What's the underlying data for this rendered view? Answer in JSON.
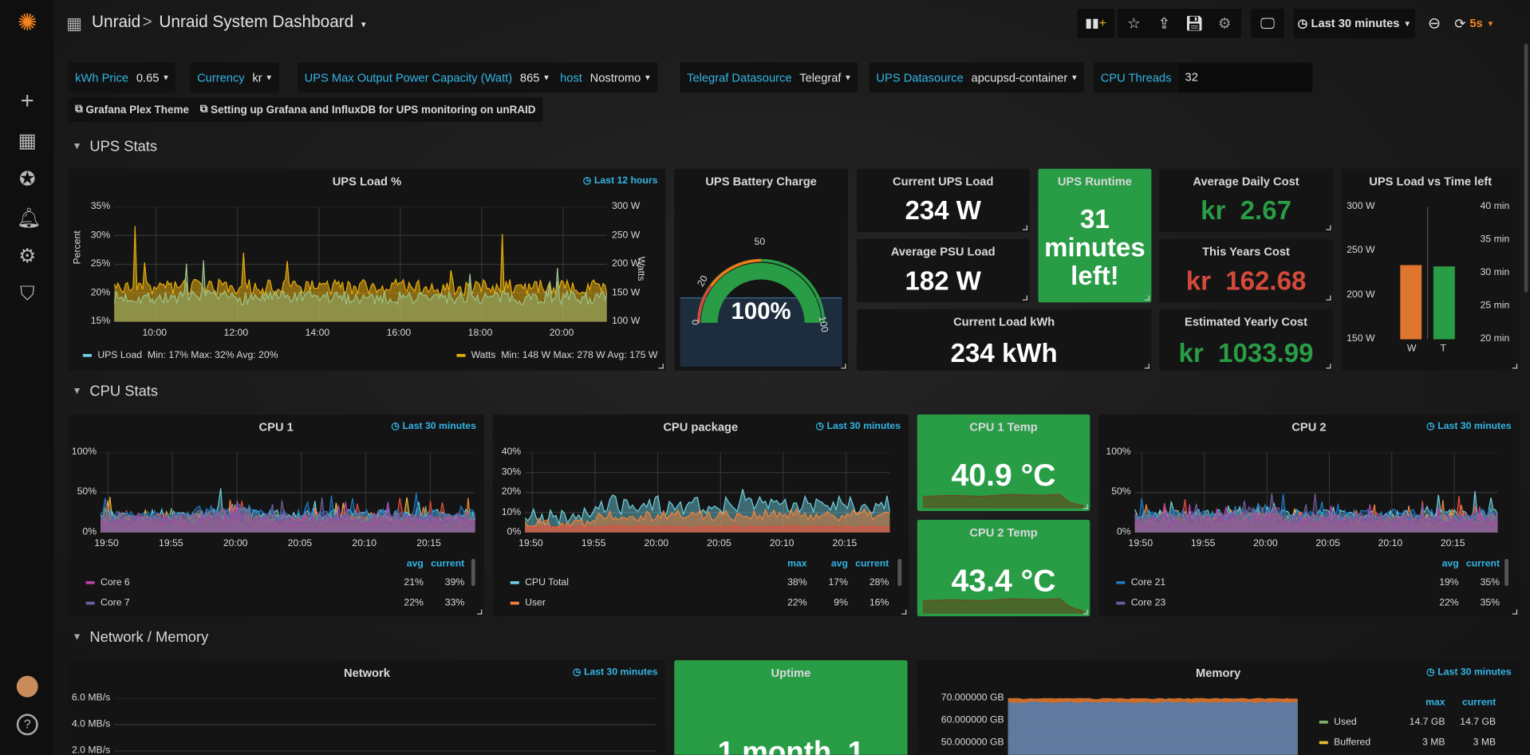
{
  "nav": {
    "org": "Unraid",
    "separator": ">",
    "dashboard_title": "Unraid System Dashboard"
  },
  "toolbar": {
    "time_range": "Last 30 minutes",
    "refresh_interval": "5s"
  },
  "variables": [
    {
      "label": "kWh Price",
      "value": "0.65"
    },
    {
      "label": "Currency",
      "value": "kr"
    },
    {
      "label": "UPS Max Output Power Capacity (Watt)",
      "value": "865"
    },
    {
      "label": "host",
      "value": "Nostromo"
    },
    {
      "label": "Telegraf Datasource",
      "value": "Telegraf"
    },
    {
      "label": "UPS Datasource",
      "value": "apcupsd-container"
    },
    {
      "label": "CPU Threads",
      "value": "32"
    }
  ],
  "links": [
    "Grafana Plex Theme",
    "Setting up Grafana and InfluxDB for UPS monitoring on unRAID"
  ],
  "rows": [
    "UPS Stats",
    "CPU Stats",
    "Network / Memory"
  ],
  "colors": {
    "accent": "#33b5e5",
    "green": "#299c46",
    "red": "#d44a3a",
    "orange": "#eb7b18",
    "refresh": "#f5821f"
  },
  "ups": {
    "load_panel": {
      "title": "UPS Load %",
      "badge": "Last 12 hours",
      "y_label": "Percent",
      "y2_label": "Watts",
      "y_ticks": [
        "35%",
        "30%",
        "25%",
        "20%",
        "15%"
      ],
      "y2_ticks": [
        "300 W",
        "250 W",
        "200 W",
        "150 W",
        "100 W"
      ],
      "x_ticks": [
        "10:00",
        "12:00",
        "14:00",
        "16:00",
        "18:00",
        "20:00"
      ],
      "legend": [
        {
          "name": "UPS Load",
          "stats": "Min: 17%  Max: 32%  Avg: 20%",
          "color": "#6ed0e0"
        },
        {
          "name": "Watts",
          "stats": "Min: 148 W  Max: 278 W  Avg: 175 W",
          "color": "#e5ac0e"
        }
      ]
    },
    "battery": {
      "title": "UPS Battery Charge",
      "value": "100%",
      "percent": 100,
      "thresholds": [
        "0",
        "20",
        "50",
        "100"
      ]
    },
    "current_load": {
      "title": "Current UPS Load",
      "value": "234 W"
    },
    "avg_psu": {
      "title": "Average PSU Load",
      "value": "182 W"
    },
    "runtime": {
      "title": "UPS Runtime",
      "value_lines": [
        "31",
        "minutes",
        "left!"
      ]
    },
    "load_kwh": {
      "title": "Current Load kWh",
      "value": "234 kWh"
    },
    "daily_cost": {
      "title": "Average Daily Cost",
      "unit": "kr",
      "value": "2.67"
    },
    "year_cost": {
      "title": "This Years Cost",
      "unit": "kr",
      "value": "162.68"
    },
    "yearly_cost": {
      "title": "Estimated Yearly Cost",
      "unit": "kr",
      "value": "1033.99"
    },
    "load_vs_time": {
      "title": "UPS Load vs Time left",
      "y_ticks": [
        "300 W",
        "250 W",
        "200 W",
        "150 W"
      ],
      "y2_ticks": [
        "40 min",
        "35 min",
        "30 min",
        "25 min",
        "20 min"
      ],
      "chart_data": {
        "type": "bar",
        "categories": [
          "W",
          "T"
        ],
        "values": [
          234,
          31
        ],
        "units": [
          "W",
          "min"
        ],
        "ylim": [
          150,
          300
        ],
        "y2lim": [
          20,
          40
        ],
        "colors": [
          "#e0752d",
          "#299c46"
        ]
      }
    }
  },
  "cpu": {
    "cpu1": {
      "title": "CPU 1",
      "badge": "Last 30 minutes",
      "y_ticks": [
        "100%",
        "50%",
        "0%"
      ],
      "x_ticks": [
        "19:50",
        "19:55",
        "20:00",
        "20:05",
        "20:10",
        "20:15"
      ],
      "legend_headers": [
        "avg",
        "current"
      ],
      "legend": [
        {
          "name": "Core 6",
          "values": [
            "21%",
            "39%"
          ],
          "color": "#ba43a9"
        },
        {
          "name": "Core 7",
          "values": [
            "22%",
            "33%"
          ],
          "color": "#705da0"
        }
      ]
    },
    "package": {
      "title": "CPU package",
      "badge": "Last 30 minutes",
      "y_ticks": [
        "40%",
        "30%",
        "20%",
        "10%",
        "0%"
      ],
      "x_ticks": [
        "19:50",
        "19:55",
        "20:00",
        "20:05",
        "20:10",
        "20:15"
      ],
      "legend_headers": [
        "max",
        "avg",
        "current"
      ],
      "legend": [
        {
          "name": "CPU Total",
          "values": [
            "38%",
            "17%",
            "28%"
          ],
          "color": "#6ed0e0"
        },
        {
          "name": "User",
          "values": [
            "22%",
            "9%",
            "16%"
          ],
          "color": "#ef843c"
        }
      ]
    },
    "temp1": {
      "title": "CPU 1 Temp",
      "value": "40.9 °C"
    },
    "temp2": {
      "title": "CPU 2 Temp",
      "value": "43.4 °C"
    },
    "cpu2": {
      "title": "CPU 2",
      "badge": "Last 30 minutes",
      "y_ticks": [
        "100%",
        "50%",
        "0%"
      ],
      "x_ticks": [
        "19:50",
        "19:55",
        "20:00",
        "20:05",
        "20:10",
        "20:15"
      ],
      "legend_headers": [
        "avg",
        "current"
      ],
      "legend": [
        {
          "name": "Core 21",
          "values": [
            "19%",
            "35%"
          ],
          "color": "#1f78c1"
        },
        {
          "name": "Core 23",
          "values": [
            "22%",
            "35%"
          ],
          "color": "#705da0"
        }
      ]
    }
  },
  "net": {
    "network": {
      "title": "Network",
      "badge": "Last 30 minutes",
      "y_ticks": [
        "6.0 MB/s",
        "4.0 MB/s",
        "2.0 MB/s"
      ]
    },
    "uptime": {
      "title": "Uptime",
      "value": "1 month, 1"
    },
    "memory": {
      "title": "Memory",
      "badge": "Last 30 minutes",
      "y_ticks": [
        "70.000000 GB",
        "60.000000 GB",
        "50.000000 GB"
      ],
      "legend_headers": [
        "max",
        "current"
      ],
      "legend": [
        {
          "name": "Used",
          "values": [
            "14.7 GB",
            "14.7 GB"
          ],
          "color": "#7eb26d"
        },
        {
          "name": "Buffered",
          "values": [
            "3 MB",
            "3 MB"
          ],
          "color": "#eab839"
        }
      ]
    }
  }
}
